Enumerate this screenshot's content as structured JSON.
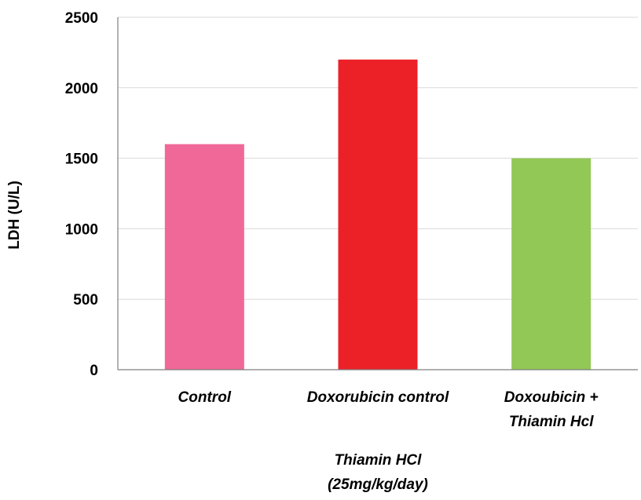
{
  "chart_data": {
    "type": "bar",
    "categories": [
      [
        "Control"
      ],
      [
        "Doxorubicin control"
      ],
      [
        "Doxoubicin +",
        "Thiamin Hcl"
      ]
    ],
    "values": [
      1600,
      2200,
      1500
    ],
    "bar_colors": [
      "#f06898",
      "#ec2127",
      "#92c855"
    ],
    "ylabel": "LDH (U/L)",
    "xlabel": [
      "Thiamin HCl",
      "(25mg/kg/day)"
    ],
    "ylim": [
      0,
      2500
    ],
    "yticks": [
      0,
      500,
      1000,
      1500,
      2000,
      2500
    ],
    "grid": true,
    "grid_color": "#d9d9d9",
    "axis_color": "#7f7f7f"
  }
}
